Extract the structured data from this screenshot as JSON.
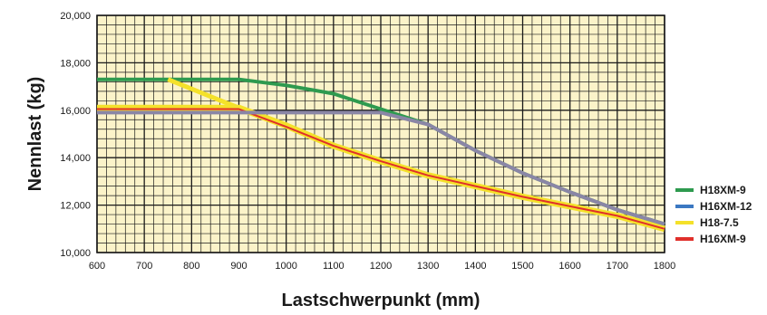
{
  "chart_data": {
    "type": "line",
    "title": "",
    "xlabel": "Lastschwerpunkt (mm)",
    "ylabel": "Nennlast (kg)",
    "xlim": [
      600,
      1800
    ],
    "ylim": [
      10000,
      20000
    ],
    "x_ticks": [
      "600",
      "700",
      "800",
      "900",
      "1000",
      "1100",
      "1200",
      "1300",
      "1400",
      "1500",
      "1600",
      "1700",
      "1800"
    ],
    "y_ticks": [
      "10,000",
      "12,000",
      "14,000",
      "16,000",
      "18,000",
      "20,000"
    ],
    "grid": true,
    "plot_background": "#fbf3c9",
    "grid_color": "#1a1a1a",
    "legend_position": "right",
    "series": [
      {
        "name": "H18XM-9",
        "color": "#2e9a4f",
        "points": [
          [
            600,
            17300
          ],
          [
            900,
            17300
          ],
          [
            1000,
            17050
          ],
          [
            1100,
            16700
          ],
          [
            1200,
            16050
          ],
          [
            1300,
            15400
          ],
          [
            1400,
            14300
          ],
          [
            1500,
            13350
          ],
          [
            1600,
            12550
          ],
          [
            1700,
            11800
          ],
          [
            1800,
            11200
          ]
        ]
      },
      {
        "name": "H16XM-12",
        "color": "#3b78c2",
        "points": [
          [
            600,
            15900
          ],
          [
            1200,
            15900
          ],
          [
            1300,
            15400
          ],
          [
            1400,
            14300
          ],
          [
            1500,
            13350
          ],
          [
            1600,
            12550
          ],
          [
            1700,
            11800
          ],
          [
            1800,
            11200
          ]
        ]
      },
      {
        "name": "H18-7.5",
        "color": "#f4e12a",
        "points": [
          [
            600,
            16100
          ],
          [
            900,
            16100
          ],
          [
            1000,
            15350
          ],
          [
            1100,
            14500
          ],
          [
            1200,
            13850
          ],
          [
            1300,
            13250
          ],
          [
            1400,
            12800
          ],
          [
            1500,
            12350
          ],
          [
            1600,
            11950
          ],
          [
            1700,
            11550
          ],
          [
            1800,
            11000
          ]
        ]
      },
      {
        "name": "H16XM-9",
        "color": "#e0302b",
        "points": [
          [
            600,
            16050
          ],
          [
            900,
            16050
          ],
          [
            1000,
            15300
          ],
          [
            1100,
            14500
          ],
          [
            1200,
            13850
          ],
          [
            1300,
            13250
          ],
          [
            1400,
            12800
          ],
          [
            1500,
            12350
          ],
          [
            1600,
            11950
          ],
          [
            1700,
            11550
          ],
          [
            1800,
            11000
          ]
        ]
      }
    ],
    "extra_yellow_segment": [
      [
        750,
        17300
      ],
      [
        800,
        16900
      ],
      [
        900,
        16100
      ]
    ],
    "overlap_color": "#8a86a6"
  }
}
